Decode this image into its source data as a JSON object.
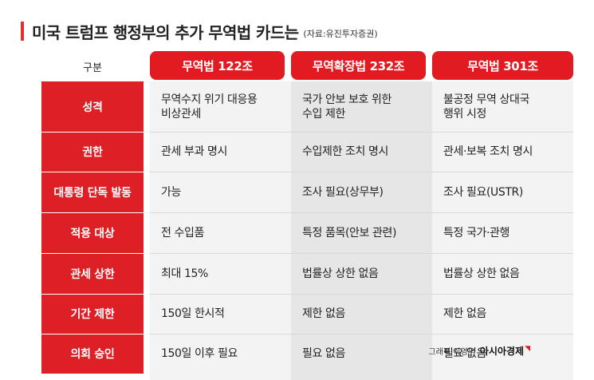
{
  "title": "미국 트럼프 행정부의 추가 무역법 카드는",
  "source": "(자료:유진투자증권)",
  "header_label": "구분",
  "columns": [
    "무역법 122조",
    "무역확장법 232조",
    "무역법 301조"
  ],
  "rows": [
    {
      "label": "성격",
      "cells": [
        "무역수지 위기 대응용\n비상관세",
        "국가 안보 보호 위한\n수입 제한",
        "불공정 무역 상대국\n행위 시정"
      ]
    },
    {
      "label": "권한",
      "cells": [
        "관세 부과 명시",
        "수입제한 조치 명시",
        "관세·보복 조치 명시"
      ]
    },
    {
      "label": "대통령 단독 발동",
      "cells": [
        "가능",
        "조사 필요(상무부)",
        "조사 필요(USTR)"
      ]
    },
    {
      "label": "적용 대상",
      "cells": [
        "전 수입품",
        "특정 품목(안보 관련)",
        "특정 국가·관행"
      ]
    },
    {
      "label": "관세 상한",
      "cells": [
        "최대 15%",
        "법률상 상한 없음",
        "법률상 상한 없음"
      ]
    },
    {
      "label": "기간 제한",
      "cells": [
        "150일 한시적",
        "제한 없음",
        "제한 없음"
      ]
    },
    {
      "label": "의회 승인",
      "cells": [
        "150일 이후 필요",
        "필요 없음",
        "필요 없음"
      ]
    }
  ],
  "credit": {
    "byline": "그래픽 이영우",
    "brand": "아시아경제"
  },
  "colors": {
    "accent": "#e21b22",
    "label_bg": "#dd1f26",
    "mid_col_bg": "#e6e6e7",
    "side_col_bg": "#f3f3f3"
  }
}
